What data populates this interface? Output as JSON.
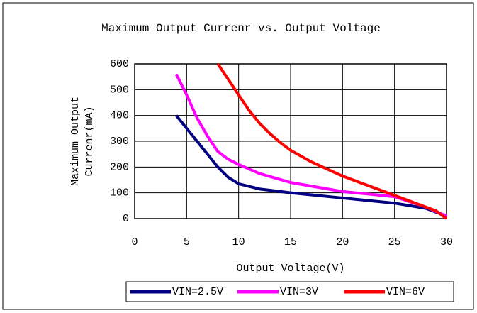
{
  "chart_data": {
    "type": "line",
    "title": "Maximum Output Currenr vs. Output Voltage",
    "xlabel": "Output Voltage(V)",
    "ylabel": [
      "Maximum Output",
      "Currenr(mA)"
    ],
    "xlim": [
      0,
      30
    ],
    "xticks": [
      0,
      5,
      10,
      15,
      20,
      25,
      30
    ],
    "ylim": [
      0,
      600
    ],
    "yticks": [
      0,
      100,
      200,
      300,
      400,
      500,
      600
    ],
    "grid": true,
    "legend": "bottom",
    "series": [
      {
        "name": "VIN=2.5V",
        "color": "#000080",
        "x": [
          4,
          5,
          6,
          7,
          8,
          9,
          10,
          12,
          15,
          20,
          25,
          28,
          30
        ],
        "values": [
          400,
          350,
          300,
          250,
          200,
          160,
          135,
          115,
          100,
          80,
          60,
          40,
          10
        ]
      },
      {
        "name": "VIN=3V",
        "color": "#ff00ff",
        "x": [
          4,
          5,
          6,
          7,
          8,
          9,
          10,
          12,
          15,
          20,
          25,
          28,
          30
        ],
        "values": [
          560,
          480,
          390,
          320,
          260,
          230,
          210,
          175,
          140,
          105,
          85,
          45,
          10
        ]
      },
      {
        "name": "VIN=6V",
        "color": "#ff0000",
        "x": [
          8,
          9,
          10,
          11,
          12,
          13,
          14,
          15,
          17,
          20,
          23,
          25,
          27,
          29,
          30
        ],
        "values": [
          600,
          540,
          480,
          420,
          370,
          330,
          295,
          265,
          220,
          165,
          120,
          90,
          60,
          30,
          0
        ]
      }
    ]
  }
}
